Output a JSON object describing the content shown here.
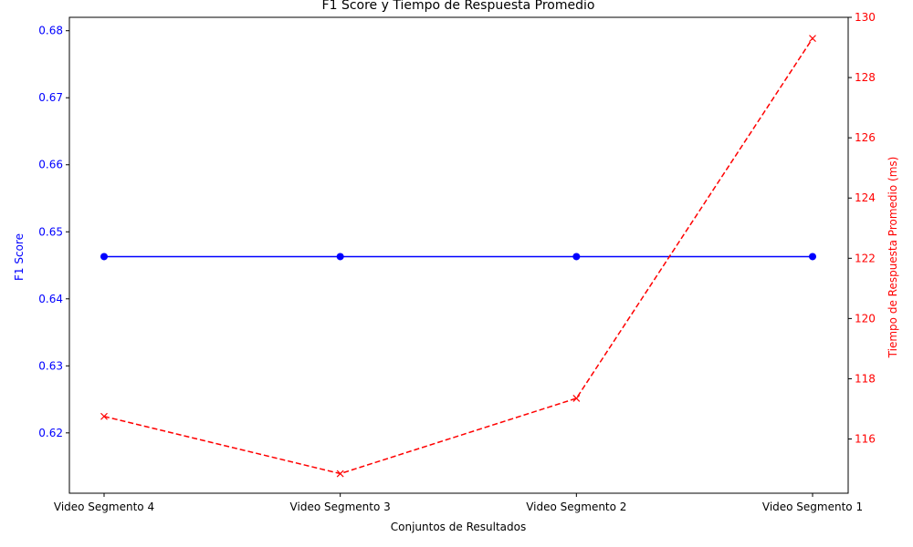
{
  "chart_data": {
    "type": "line",
    "title": "F1 Score y Tiempo de Respuesta Promedio",
    "xlabel": "Conjuntos de Resultados",
    "categories": [
      "Video Segmento 4",
      "Video Segmento 3",
      "Video Segmento 2",
      "Video Segmento 1"
    ],
    "left_axis": {
      "label": "F1 Score",
      "color": "#0000ff",
      "ylim": [
        0.611,
        0.682
      ],
      "ticks": [
        "0.62",
        "0.63",
        "0.64",
        "0.65",
        "0.66",
        "0.67",
        "0.68"
      ]
    },
    "right_axis": {
      "label": "Tiempo de Respuesta Promedio (ms)",
      "color": "#ff0000",
      "ylim": [
        114.2,
        130.0
      ],
      "ticks": [
        "116",
        "118",
        "120",
        "122",
        "124",
        "126",
        "128",
        "130"
      ]
    },
    "series": [
      {
        "axis": "left",
        "color": "#0000ff",
        "line_style": "solid",
        "marker": "circle",
        "values": [
          0.6463,
          0.6463,
          0.6463,
          0.6463
        ]
      },
      {
        "axis": "right",
        "color": "#ff0000",
        "line_style": "dashed",
        "marker": "x",
        "values": [
          116.75,
          114.85,
          117.35,
          129.3
        ]
      }
    ]
  }
}
